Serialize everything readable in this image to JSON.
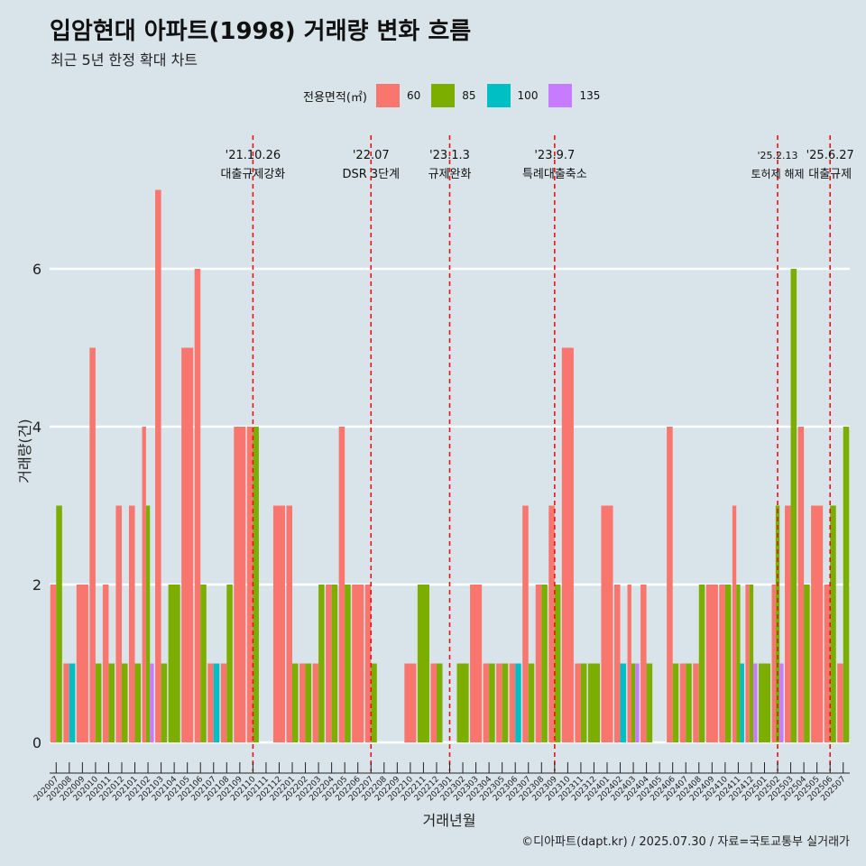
{
  "title": "입암현대 아파트(1998) 거래량 변화 흐름",
  "subtitle": "최근 5년 한정 확대 차트",
  "caption": "©디아파트(dapt.kr) / 2025.07.30 / 자료=국토교통부 실거래가",
  "legend": {
    "title": "전용면적(㎡)",
    "items": [
      {
        "label": "60",
        "color": "#f8766d"
      },
      {
        "label": "85",
        "color": "#7cae00"
      },
      {
        "label": "100",
        "color": "#00bfc4"
      },
      {
        "label": "135",
        "color": "#c77cff"
      }
    ]
  },
  "colors": {
    "60": "#f8766d",
    "85": "#7cae00",
    "100": "#00bfc4",
    "135": "#c77cff",
    "vline": "#ee1111",
    "background": "#d8e4ea",
    "grid": "#ffffff"
  },
  "chart_data": {
    "type": "bar",
    "title": "입암현대 아파트(1998) 거래량 변화 흐름",
    "xlabel": "거래년월",
    "ylabel": "거래량(건)",
    "ylim": [
      0,
      7.4
    ],
    "yticks": [
      0,
      2,
      4,
      6
    ],
    "grid": true,
    "legend_position": "top",
    "position": "dodge",
    "x": [
      "202007",
      "202008",
      "202009",
      "202010",
      "202011",
      "202012",
      "202101",
      "202102",
      "202103",
      "202104",
      "202105",
      "202106",
      "202107",
      "202108",
      "202109",
      "202110",
      "202111",
      "202112",
      "202201",
      "202202",
      "202203",
      "202204",
      "202205",
      "202206",
      "202207",
      "202208",
      "202209",
      "202210",
      "202211",
      "202212",
      "202301",
      "202302",
      "202303",
      "202304",
      "202305",
      "202306",
      "202307",
      "202308",
      "202309",
      "202310",
      "202311",
      "202312",
      "202401",
      "202402",
      "202403",
      "202404",
      "202405",
      "202406",
      "202407",
      "202408",
      "202409",
      "202410",
      "202411",
      "202412",
      "202501",
      "202502",
      "202503",
      "202504",
      "202505",
      "202506",
      "202507"
    ],
    "xtick_labels": [
      "202007",
      "202008",
      "202009",
      "202010",
      "202011",
      "202012",
      "202101",
      "202102",
      "202103",
      "202104",
      "202105",
      "202106",
      "202107",
      "202108",
      "202109",
      "202110",
      "202111",
      "202112",
      "202201",
      "202202",
      "202203",
      "202204",
      "202205",
      "202206",
      "202207",
      "202208",
      "202209",
      "202210",
      "202211",
      "202212",
      "202301",
      "202302",
      "202303",
      "202304",
      "202305",
      "202306",
      "202307",
      "202308",
      "202309",
      "202310",
      "202311",
      "202312",
      "202401",
      "202402",
      "202403",
      "202404",
      "202405",
      "202406",
      "202407",
      "202408",
      "202409",
      "202410",
      "202411",
      "202412",
      "202501",
      "202502",
      "202503",
      "202504",
      "202505",
      "202506",
      "202507"
    ],
    "bars": [
      {
        "x": "202007",
        "groups": [
          {
            "area": "60",
            "value": 2
          },
          {
            "area": "85",
            "value": 3
          }
        ]
      },
      {
        "x": "202008",
        "groups": [
          {
            "area": "60",
            "value": 1
          },
          {
            "area": "100",
            "value": 1
          }
        ]
      },
      {
        "x": "202009",
        "groups": [
          {
            "area": "60",
            "value": 2
          }
        ]
      },
      {
        "x": "202010",
        "groups": [
          {
            "area": "60",
            "value": 5
          },
          {
            "area": "85",
            "value": 1
          }
        ]
      },
      {
        "x": "202011",
        "groups": [
          {
            "area": "60",
            "value": 2
          },
          {
            "area": "85",
            "value": 1
          }
        ]
      },
      {
        "x": "202012",
        "groups": [
          {
            "area": "60",
            "value": 3
          },
          {
            "area": "85",
            "value": 1
          }
        ]
      },
      {
        "x": "202101",
        "groups": [
          {
            "area": "60",
            "value": 3
          },
          {
            "area": "85",
            "value": 1
          }
        ]
      },
      {
        "x": "202102",
        "groups": [
          {
            "area": "60",
            "value": 4
          },
          {
            "area": "85",
            "value": 3
          },
          {
            "area": "135",
            "value": 1
          }
        ]
      },
      {
        "x": "202103",
        "groups": [
          {
            "area": "60",
            "value": 7
          },
          {
            "area": "85",
            "value": 1
          }
        ]
      },
      {
        "x": "202104",
        "groups": [
          {
            "area": "85",
            "value": 2
          }
        ]
      },
      {
        "x": "202105",
        "groups": [
          {
            "area": "60",
            "value": 5
          }
        ]
      },
      {
        "x": "202106",
        "groups": [
          {
            "area": "60",
            "value": 6
          },
          {
            "area": "85",
            "value": 2
          }
        ]
      },
      {
        "x": "202107",
        "groups": [
          {
            "area": "60",
            "value": 1
          },
          {
            "area": "100",
            "value": 1
          }
        ]
      },
      {
        "x": "202108",
        "groups": [
          {
            "area": "60",
            "value": 1
          },
          {
            "area": "85",
            "value": 2
          }
        ]
      },
      {
        "x": "202109",
        "groups": [
          {
            "area": "60",
            "value": 4
          }
        ]
      },
      {
        "x": "202110",
        "groups": [
          {
            "area": "60",
            "value": 4
          },
          {
            "area": "85",
            "value": 4
          }
        ]
      },
      {
        "x": "202111",
        "groups": []
      },
      {
        "x": "202112",
        "groups": [
          {
            "area": "60",
            "value": 3
          }
        ]
      },
      {
        "x": "202201",
        "groups": [
          {
            "area": "60",
            "value": 3
          },
          {
            "area": "85",
            "value": 1
          }
        ]
      },
      {
        "x": "202202",
        "groups": [
          {
            "area": "60",
            "value": 1
          },
          {
            "area": "85",
            "value": 1
          }
        ]
      },
      {
        "x": "202203",
        "groups": [
          {
            "area": "60",
            "value": 1
          },
          {
            "area": "85",
            "value": 2
          }
        ]
      },
      {
        "x": "202204",
        "groups": [
          {
            "area": "60",
            "value": 2
          },
          {
            "area": "85",
            "value": 2
          }
        ]
      },
      {
        "x": "202205",
        "groups": [
          {
            "area": "60",
            "value": 4
          },
          {
            "area": "85",
            "value": 2
          }
        ]
      },
      {
        "x": "202206",
        "groups": [
          {
            "area": "60",
            "value": 2
          }
        ]
      },
      {
        "x": "202207",
        "groups": [
          {
            "area": "60",
            "value": 2
          },
          {
            "area": "85",
            "value": 1
          }
        ]
      },
      {
        "x": "202208",
        "groups": []
      },
      {
        "x": "202209",
        "groups": []
      },
      {
        "x": "202210",
        "groups": [
          {
            "area": "60",
            "value": 1
          }
        ]
      },
      {
        "x": "202211",
        "groups": [
          {
            "area": "85",
            "value": 2
          }
        ]
      },
      {
        "x": "202212",
        "groups": [
          {
            "area": "60",
            "value": 1
          },
          {
            "area": "85",
            "value": 1
          }
        ]
      },
      {
        "x": "202301",
        "groups": []
      },
      {
        "x": "202302",
        "groups": [
          {
            "area": "85",
            "value": 1
          }
        ]
      },
      {
        "x": "202303",
        "groups": [
          {
            "area": "60",
            "value": 2
          }
        ]
      },
      {
        "x": "202304",
        "groups": [
          {
            "area": "60",
            "value": 1
          },
          {
            "area": "85",
            "value": 1
          }
        ]
      },
      {
        "x": "202305",
        "groups": [
          {
            "area": "60",
            "value": 1
          },
          {
            "area": "85",
            "value": 1
          }
        ]
      },
      {
        "x": "202306",
        "groups": [
          {
            "area": "60",
            "value": 1
          },
          {
            "area": "100",
            "value": 1
          }
        ]
      },
      {
        "x": "202307",
        "groups": [
          {
            "area": "60",
            "value": 3
          },
          {
            "area": "85",
            "value": 1
          }
        ]
      },
      {
        "x": "202308",
        "groups": [
          {
            "area": "60",
            "value": 2
          },
          {
            "area": "85",
            "value": 2
          }
        ]
      },
      {
        "x": "202309",
        "groups": [
          {
            "area": "60",
            "value": 3
          },
          {
            "area": "85",
            "value": 2
          }
        ]
      },
      {
        "x": "202310",
        "groups": [
          {
            "area": "60",
            "value": 5
          }
        ]
      },
      {
        "x": "202311",
        "groups": [
          {
            "area": "60",
            "value": 1
          },
          {
            "area": "85",
            "value": 1
          }
        ]
      },
      {
        "x": "202312",
        "groups": [
          {
            "area": "85",
            "value": 1
          }
        ]
      },
      {
        "x": "202401",
        "groups": [
          {
            "area": "60",
            "value": 3
          }
        ]
      },
      {
        "x": "202402",
        "groups": [
          {
            "area": "60",
            "value": 2
          },
          {
            "area": "100",
            "value": 1
          }
        ]
      },
      {
        "x": "202403",
        "groups": [
          {
            "area": "60",
            "value": 2
          },
          {
            "area": "85",
            "value": 1
          },
          {
            "area": "135",
            "value": 1
          }
        ]
      },
      {
        "x": "202404",
        "groups": [
          {
            "area": "60",
            "value": 2
          },
          {
            "area": "85",
            "value": 1
          }
        ]
      },
      {
        "x": "202405",
        "groups": []
      },
      {
        "x": "202406",
        "groups": [
          {
            "area": "60",
            "value": 4
          },
          {
            "area": "85",
            "value": 1
          }
        ]
      },
      {
        "x": "202407",
        "groups": [
          {
            "area": "60",
            "value": 1
          },
          {
            "area": "85",
            "value": 1
          }
        ]
      },
      {
        "x": "202408",
        "groups": [
          {
            "area": "60",
            "value": 1
          },
          {
            "area": "85",
            "value": 2
          }
        ]
      },
      {
        "x": "202409",
        "groups": [
          {
            "area": "60",
            "value": 2
          }
        ]
      },
      {
        "x": "202410",
        "groups": [
          {
            "area": "60",
            "value": 2
          },
          {
            "area": "85",
            "value": 2
          }
        ]
      },
      {
        "x": "202411",
        "groups": [
          {
            "area": "60",
            "value": 3
          },
          {
            "area": "85",
            "value": 2
          },
          {
            "area": "100",
            "value": 1
          }
        ]
      },
      {
        "x": "202412",
        "groups": [
          {
            "area": "60",
            "value": 2
          },
          {
            "area": "85",
            "value": 2
          },
          {
            "area": "135",
            "value": 1
          }
        ]
      },
      {
        "x": "202501",
        "groups": [
          {
            "area": "85",
            "value": 1
          }
        ]
      },
      {
        "x": "202502",
        "groups": [
          {
            "area": "60",
            "value": 2
          },
          {
            "area": "85",
            "value": 3
          },
          {
            "area": "135",
            "value": 1
          }
        ]
      },
      {
        "x": "202503",
        "groups": [
          {
            "area": "60",
            "value": 3
          },
          {
            "area": "85",
            "value": 6
          }
        ]
      },
      {
        "x": "202504",
        "groups": [
          {
            "area": "60",
            "value": 4
          },
          {
            "area": "85",
            "value": 2
          }
        ]
      },
      {
        "x": "202505",
        "groups": [
          {
            "area": "60",
            "value": 3
          }
        ]
      },
      {
        "x": "202506",
        "groups": [
          {
            "area": "60",
            "value": 2
          },
          {
            "area": "85",
            "value": 3
          }
        ]
      },
      {
        "x": "202507",
        "groups": [
          {
            "area": "60",
            "value": 1
          },
          {
            "area": "85",
            "value": 4
          }
        ]
      }
    ],
    "events": [
      {
        "x": "202110",
        "date": "'21.10.26",
        "label": "대출규제강화"
      },
      {
        "x": "202207",
        "date": "'22.07",
        "label": "DSR 3단계"
      },
      {
        "x": "202301",
        "date": "'23.1.3",
        "label": "규제완화"
      },
      {
        "x": "202309",
        "date": "'23.9.7",
        "label": "특례대출축소"
      },
      {
        "x": "202502",
        "date": "'25.2.13",
        "label": "토허제 해제"
      },
      {
        "x": "202506",
        "date": "'25.6.27",
        "label": "대출규제"
      }
    ]
  }
}
